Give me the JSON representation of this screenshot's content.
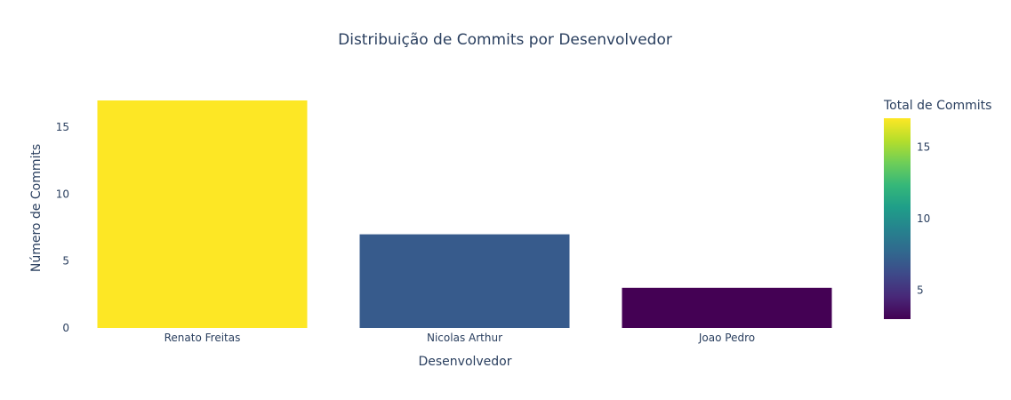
{
  "chart_data": {
    "type": "bar",
    "title": "Distribuição de Commits por Desenvolvedor",
    "xlabel": "Desenvolvedor",
    "ylabel": "Número de Commits",
    "categories": [
      "Renato Freitas",
      "Nicolas Arthur",
      "Joao Pedro"
    ],
    "values": [
      17,
      7,
      3
    ],
    "ylim": [
      0,
      17
    ],
    "yticks": [
      0,
      5,
      10,
      15
    ],
    "grid": false,
    "colorbar": {
      "title": "Total de Commits",
      "colorscale": "viridis",
      "range": [
        3,
        17
      ],
      "ticks": [
        5,
        10,
        15
      ]
    },
    "colors": {
      "text": "#2a3f5f",
      "viridis": [
        "#440154",
        "#482878",
        "#3e4989",
        "#31688e",
        "#26828e",
        "#1f9e89",
        "#35b779",
        "#6ece58",
        "#b5de2b",
        "#fde725"
      ]
    }
  }
}
